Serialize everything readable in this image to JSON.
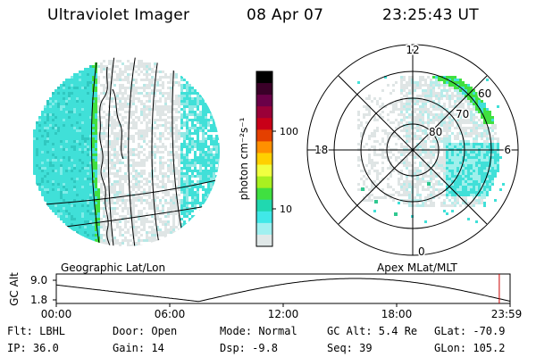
{
  "header": {
    "instrument": "Ultraviolet Imager",
    "date": "08 Apr 07",
    "time": "23:25:43 UT"
  },
  "colorbar": {
    "unit_label": "photon cm⁻²s⁻¹",
    "ticks": [
      "100",
      "10"
    ],
    "colors": [
      "#000000",
      "#3a0028",
      "#6a0048",
      "#9a0038",
      "#c80018",
      "#e44000",
      "#ff9000",
      "#ffd000",
      "#f0ff40",
      "#a8f020",
      "#40e040",
      "#20d8b0",
      "#40e8e8",
      "#a0f0f0",
      "#e0e8e8"
    ]
  },
  "polar_plot": {
    "mlt_labels": {
      "top": "12",
      "left": "18",
      "right": "6",
      "bottom": "0"
    },
    "lat_labels": [
      "60",
      "70",
      "80"
    ]
  },
  "panels": {
    "left_label": "Geographic Lat/Lon",
    "right_label": "Apex MLat/MLT"
  },
  "orbit": {
    "y_axis_label": "GC Alt",
    "y_ticks": [
      "9.0",
      "1.8"
    ],
    "x_ticks": [
      "00:00",
      "06:00",
      "12:00",
      "18:00",
      "23:59"
    ],
    "current_time_marker_hours": 23.43
  },
  "info": {
    "filter": "Flt: LBHL",
    "ip": "IP: 36.0",
    "door": "Door: Open",
    "gain": "Gain: 14",
    "mode": "Mode: Normal",
    "dsp": "Dsp:   -9.8",
    "gc_alt": "GC Alt: 5.4 Re",
    "seq": "Seq: 39",
    "glat": "GLat: -70.9",
    "glon": "GLon: 105.2"
  },
  "colors": {
    "image_base": "#dfe5e5",
    "aurora_cyan": "#40e0d8",
    "aurora_green": "#40e040",
    "marker_red": "#cc0000"
  }
}
